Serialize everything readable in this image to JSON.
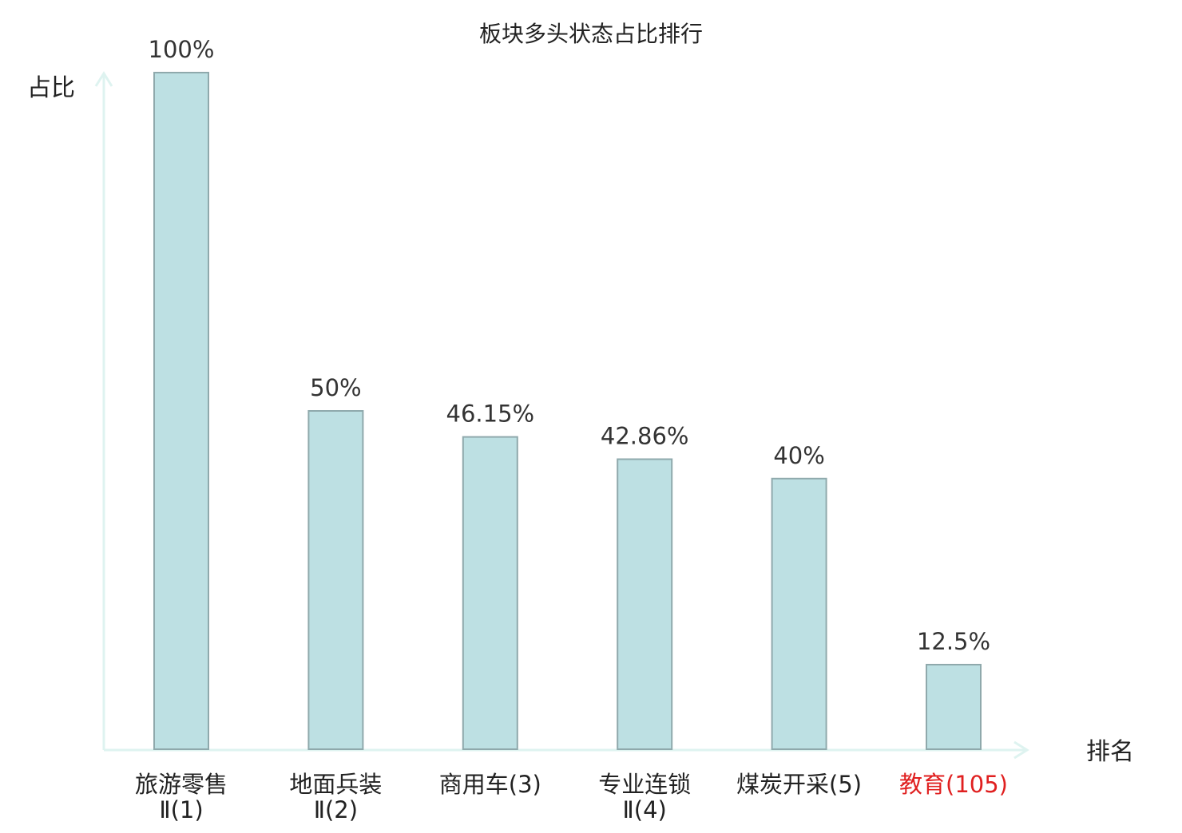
{
  "chart_data": {
    "type": "bar",
    "title": "板块多头状态占比排行",
    "ylabel": "占比",
    "xlabel": "排名",
    "ylim": [
      0,
      100
    ],
    "grid": false,
    "legend": "none",
    "bar_color": "#bde0e3",
    "bar_border_color": "#8fa9ac",
    "axis_color": "#def3f0",
    "text_color": "#222222",
    "highlight_color": "#e02020",
    "categories": [
      {
        "name": "旅游零售Ⅱ",
        "rank": "(1)",
        "line1": "旅游零售",
        "line2": "Ⅱ(1)",
        "highlight": false
      },
      {
        "name": "地面兵装Ⅱ",
        "rank": "(2)",
        "line1": "地面兵装",
        "line2": "Ⅱ(2)",
        "highlight": false
      },
      {
        "name": "商用车",
        "rank": "(3)",
        "line1": "商用车(3)",
        "line2": "",
        "highlight": false
      },
      {
        "name": "专业连锁Ⅱ",
        "rank": "(4)",
        "line1": "专业连锁",
        "line2": "Ⅱ(4)",
        "highlight": false
      },
      {
        "name": "煤炭开采",
        "rank": "(5)",
        "line1": "煤炭开采(5)",
        "line2": "",
        "highlight": false
      },
      {
        "name": "教育",
        "rank": "(105)",
        "line1": "教育(105)",
        "line2": "",
        "highlight": true
      }
    ],
    "values": [
      100,
      50,
      46.15,
      42.86,
      40,
      12.5
    ],
    "value_labels": [
      "100%",
      "50%",
      "46.15%",
      "42.86%",
      "40%",
      "12.5%"
    ]
  }
}
